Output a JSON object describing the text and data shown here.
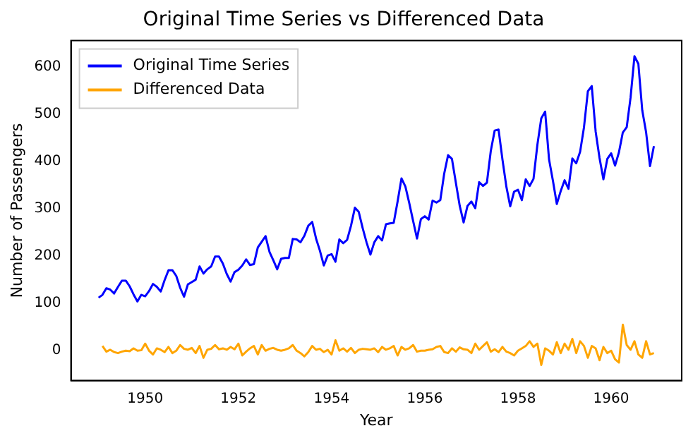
{
  "chart_data": {
    "type": "line",
    "title": "Original Time Series vs Differenced Data",
    "xlabel": "Year",
    "ylabel": "Number of Passengers",
    "legend": "top left",
    "grid": false,
    "marker": "none",
    "line_style": "solid",
    "xlim": [
      "1948-05-28",
      "1961-07-06"
    ],
    "xticks": [
      "1950",
      "1952",
      "1954",
      "1956",
      "1958",
      "1960"
    ],
    "ylim": [
      -63,
      655
    ],
    "yticks": [
      0,
      100,
      200,
      300,
      400,
      500,
      600
    ],
    "series": [
      {
        "name": "Original Time Series",
        "color": "#0000ff",
        "x": [
          "1949-01",
          "1949-02",
          "1949-03",
          "1949-04",
          "1949-05",
          "1949-06",
          "1949-07",
          "1949-08",
          "1949-09",
          "1949-10",
          "1949-11",
          "1949-12",
          "1950-01",
          "1950-02",
          "1950-03",
          "1950-04",
          "1950-05",
          "1950-06",
          "1950-07",
          "1950-08",
          "1950-09",
          "1950-10",
          "1950-11",
          "1950-12",
          "1951-01",
          "1951-02",
          "1951-03",
          "1951-04",
          "1951-05",
          "1951-06",
          "1951-07",
          "1951-08",
          "1951-09",
          "1951-10",
          "1951-11",
          "1951-12",
          "1952-01",
          "1952-02",
          "1952-03",
          "1952-04",
          "1952-05",
          "1952-06",
          "1952-07",
          "1952-08",
          "1952-09",
          "1952-10",
          "1952-11",
          "1952-12",
          "1953-01",
          "1953-02",
          "1953-03",
          "1953-04",
          "1953-05",
          "1953-06",
          "1953-07",
          "1953-08",
          "1953-09",
          "1953-10",
          "1953-11",
          "1953-12",
          "1954-01",
          "1954-02",
          "1954-03",
          "1954-04",
          "1954-05",
          "1954-06",
          "1954-07",
          "1954-08",
          "1954-09",
          "1954-10",
          "1954-11",
          "1954-12",
          "1955-01",
          "1955-02",
          "1955-03",
          "1955-04",
          "1955-05",
          "1955-06",
          "1955-07",
          "1955-08",
          "1955-09",
          "1955-10",
          "1955-11",
          "1955-12",
          "1956-01",
          "1956-02",
          "1956-03",
          "1956-04",
          "1956-05",
          "1956-06",
          "1956-07",
          "1956-08",
          "1956-09",
          "1956-10",
          "1956-11",
          "1956-12",
          "1957-01",
          "1957-02",
          "1957-03",
          "1957-04",
          "1957-05",
          "1957-06",
          "1957-07",
          "1957-08",
          "1957-09",
          "1957-10",
          "1957-11",
          "1957-12",
          "1958-01",
          "1958-02",
          "1958-03",
          "1958-04",
          "1958-05",
          "1958-06",
          "1958-07",
          "1958-08",
          "1958-09",
          "1958-10",
          "1958-11",
          "1958-12",
          "1959-01",
          "1959-02",
          "1959-03",
          "1959-04",
          "1959-05",
          "1959-06",
          "1959-07",
          "1959-08",
          "1959-09",
          "1959-10",
          "1959-11",
          "1959-12",
          "1960-01",
          "1960-02",
          "1960-03",
          "1960-04",
          "1960-05",
          "1960-06",
          "1960-07",
          "1960-08",
          "1960-09",
          "1960-10",
          "1960-11",
          "1960-12"
        ],
        "values": [
          112,
          118,
          132,
          129,
          121,
          135,
          148,
          148,
          136,
          119,
          104,
          118,
          115,
          126,
          141,
          135,
          125,
          149,
          170,
          170,
          158,
          133,
          114,
          140,
          145,
          150,
          178,
          163,
          172,
          178,
          199,
          199,
          184,
          162,
          146,
          166,
          171,
          180,
          193,
          181,
          183,
          218,
          230,
          242,
          209,
          191,
          172,
          194,
          196,
          196,
          236,
          235,
          229,
          243,
          264,
          272,
          237,
          211,
          180,
          201,
          204,
          188,
          235,
          227,
          234,
          264,
          302,
          293,
          259,
          229,
          203,
          229,
          242,
          233,
          267,
          269,
          270,
          315,
          364,
          347,
          312,
          274,
          237,
          278,
          284,
          277,
          317,
          313,
          318,
          374,
          413,
          405,
          355,
          306,
          271,
          306,
          315,
          301,
          356,
          348,
          355,
          422,
          465,
          467,
          404,
          347,
          305,
          336,
          340,
          318,
          362,
          348,
          363,
          435,
          491,
          505,
          404,
          359,
          310,
          337,
          360,
          342,
          406,
          396,
          420,
          472,
          548,
          559,
          463,
          407,
          362,
          405,
          417,
          391,
          419,
          461,
          472,
          535,
          622,
          606,
          508,
          461,
          390,
          432
        ]
      },
      {
        "name": "Differenced Data",
        "color": "#ffa500",
        "x": [
          "1949-02",
          "1949-03",
          "1949-04",
          "1949-05",
          "1949-06",
          "1949-07",
          "1949-08",
          "1949-09",
          "1949-10",
          "1949-11",
          "1949-12",
          "1950-01",
          "1950-02",
          "1950-03",
          "1950-04",
          "1950-05",
          "1950-06",
          "1950-07",
          "1950-08",
          "1950-09",
          "1950-10",
          "1950-11",
          "1950-12",
          "1951-01",
          "1951-02",
          "1951-03",
          "1951-04",
          "1951-05",
          "1951-06",
          "1951-07",
          "1951-08",
          "1951-09",
          "1951-10",
          "1951-11",
          "1951-12",
          "1952-01",
          "1952-02",
          "1952-03",
          "1952-04",
          "1952-05",
          "1952-06",
          "1952-07",
          "1952-08",
          "1952-09",
          "1952-10",
          "1952-11",
          "1952-12",
          "1953-01",
          "1953-02",
          "1953-03",
          "1953-04",
          "1953-05",
          "1953-06",
          "1953-07",
          "1953-08",
          "1953-09",
          "1953-10",
          "1953-11",
          "1953-12",
          "1954-01",
          "1954-02",
          "1954-03",
          "1954-04",
          "1954-05",
          "1954-06",
          "1954-07",
          "1954-08",
          "1954-09",
          "1954-10",
          "1954-11",
          "1954-12",
          "1955-01",
          "1955-02",
          "1955-03",
          "1955-04",
          "1955-05",
          "1955-06",
          "1955-07",
          "1955-08",
          "1955-09",
          "1955-10",
          "1955-11",
          "1955-12",
          "1956-01",
          "1956-02",
          "1956-03",
          "1956-04",
          "1956-05",
          "1956-06",
          "1956-07",
          "1956-08",
          "1956-09",
          "1956-10",
          "1956-11",
          "1956-12",
          "1957-01",
          "1957-02",
          "1957-03",
          "1957-04",
          "1957-05",
          "1957-06",
          "1957-07",
          "1957-08",
          "1957-09",
          "1957-10",
          "1957-11",
          "1957-12",
          "1958-01",
          "1958-02",
          "1958-03",
          "1958-04",
          "1958-05",
          "1958-06",
          "1958-07",
          "1958-08",
          "1958-09",
          "1958-10",
          "1958-11",
          "1958-12",
          "1959-01",
          "1959-02",
          "1959-03",
          "1959-04",
          "1959-05",
          "1959-06",
          "1959-07",
          "1959-08",
          "1959-09",
          "1959-10",
          "1959-11",
          "1959-12",
          "1960-01",
          "1960-02",
          "1960-03",
          "1960-04",
          "1960-05",
          "1960-06",
          "1960-07",
          "1960-08",
          "1960-09",
          "1960-10",
          "1960-11",
          "1960-12"
        ],
        "values": [
          10,
          -2,
          2,
          -3,
          -5,
          -2,
          0,
          -1,
          5,
          0,
          1,
          15,
          0,
          -8,
          5,
          2,
          -3,
          8,
          -5,
          0,
          12,
          4,
          2,
          6,
          -5,
          10,
          -15,
          2,
          4,
          12,
          3,
          5,
          2,
          8,
          3,
          15,
          -10,
          -2,
          5,
          10,
          -8,
          12,
          0,
          4,
          6,
          2,
          0,
          2,
          5,
          12,
          0,
          -5,
          -12,
          -3,
          10,
          2,
          4,
          -3,
          2,
          -8,
          22,
          0,
          5,
          -2,
          6,
          -5,
          2,
          4,
          3,
          2,
          5,
          -3,
          8,
          2,
          5,
          10,
          -10,
          8,
          2,
          5,
          12,
          -2,
          0,
          0,
          2,
          3,
          8,
          10,
          -3,
          -5,
          5,
          -2,
          7,
          3,
          2,
          -5,
          15,
          2,
          10,
          18,
          -2,
          3,
          -3,
          8,
          -2,
          -5,
          -10,
          0,
          5,
          10,
          20,
          8,
          15,
          -30,
          5,
          0,
          -8,
          18,
          -5,
          15,
          2,
          25,
          -5,
          20,
          10,
          -15,
          10,
          5,
          -20,
          8,
          -5,
          0,
          -18,
          -25,
          55,
          12,
          2,
          20,
          -8,
          -15,
          20,
          -8,
          -5
        ]
      }
    ]
  }
}
